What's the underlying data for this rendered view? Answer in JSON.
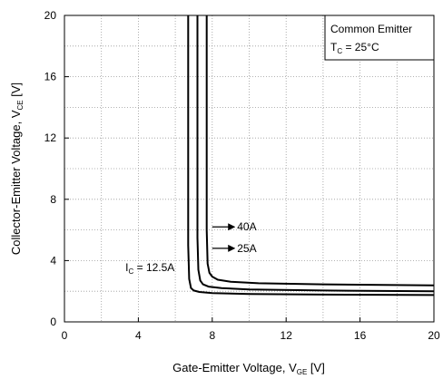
{
  "chart_data": {
    "type": "line",
    "legend_box": {
      "line1": "Common Emitter",
      "line2_prefix": "T",
      "line2_sub": "C",
      "line2_rest": " = 25°C"
    },
    "xlabel": {
      "prefix": "Gate-Emitter Voltage, V",
      "sub": "GE",
      "suffix": " [V]"
    },
    "ylabel": {
      "prefix": "Collector-Emitter Voltage, V",
      "sub": "CE",
      "suffix": " [V]"
    },
    "xlim": [
      0,
      20
    ],
    "ylim": [
      0,
      20
    ],
    "xticks": [
      0,
      4,
      8,
      12,
      16,
      20
    ],
    "yticks": [
      0,
      4,
      8,
      12,
      16,
      20
    ],
    "grid": "dotted",
    "series": [
      {
        "name": "12.5A",
        "x": [
          6.7,
          6.7,
          6.75,
          6.85,
          7.0,
          7.3,
          8.0,
          10,
          14,
          20
        ],
        "y": [
          20,
          5,
          2.8,
          2.2,
          2.05,
          1.95,
          1.88,
          1.82,
          1.78,
          1.75
        ]
      },
      {
        "name": "25A",
        "x": [
          7.2,
          7.2,
          7.25,
          7.35,
          7.5,
          7.8,
          8.5,
          10,
          14,
          20
        ],
        "y": [
          20,
          5.5,
          3.4,
          2.7,
          2.45,
          2.3,
          2.2,
          2.12,
          2.05,
          2.0
        ]
      },
      {
        "name": "40A",
        "x": [
          7.7,
          7.7,
          7.75,
          7.85,
          8.0,
          8.3,
          9.0,
          10.5,
          14,
          20
        ],
        "y": [
          20,
          6.0,
          3.8,
          3.2,
          2.95,
          2.75,
          2.62,
          2.52,
          2.45,
          2.38
        ]
      }
    ],
    "annotations": [
      {
        "text": "40A",
        "arrow_x": [
          8.0,
          9.2
        ],
        "arrow_y": 6.2
      },
      {
        "text": "25A",
        "arrow_x": [
          8.0,
          9.2
        ],
        "arrow_y": 4.8
      },
      {
        "prefix": "I",
        "sub": "C",
        "text": " = 12.5A",
        "at_x": 3.3,
        "at_y": 3.3
      }
    ]
  }
}
